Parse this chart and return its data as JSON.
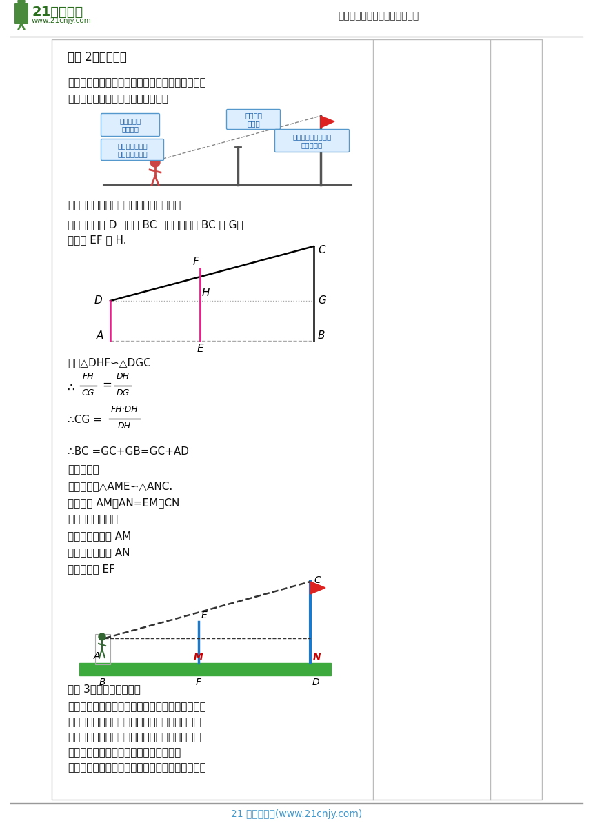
{
  "header_logo_text": "21世纪教育",
  "header_website": "www.21cnjy.com",
  "header_right": "中小学教育资源及组卷应用平台",
  "footer_text": "21 世纪教育网(www.21cnjy.com)",
  "method2_title": "方法 2：利用标杆",
  "desc1": "观测者适当调整自己的位置，使旗杆顶端、标杆顶",
  "desc2": "端、自己的眼睛恰好在一条直线上。",
  "label1": "观测者的身\n高可测量",
  "label2": "标杆的高\n可测量",
  "label3": "观测者到标杆底\n端的距离可测量",
  "label4": "观测者到旗杆底端的\n距离可测量",
  "question": "根据测量数据，你能求出旗杆的高度吗？",
  "construction1": "过眼睛所在点 D 作旗杆 BC 的垂线交旗杆 BC 于 G，",
  "construction2": "交标杆 EF 于 H.",
  "similarity": "可得△DHF∽△DGC",
  "therefore1": "∴",
  "frac1_n": "FH",
  "frac1_d": "CG",
  "eq": "=",
  "frac2_n": "DH",
  "frac2_d": "DG",
  "therefore2": "∴CG =",
  "frac3_n": "FH·DH",
  "frac3_d": "DH",
  "bc_eq": "∴BC =GC+GB=GC+AD",
  "summary": "归纳总结：",
  "s1": "构造相似：△AME∽△ANC.",
  "s2": "找比例： AM：AN=EM：CN",
  "s3": "需要测量的数据：",
  "s4": "人与标杆的距离 AM",
  "s5": "人与旗杆的距离 AN",
  "s6": "标杆的高度 EF",
  "method3_title": "方法 3：利用镜子的反射",
  "m3d1": "如图，每个小组选一名同学作为观测者，在观测者",
  "m3d2": "与旗杆之间的地面上平放一面镜子，在镜子上做一",
  "m3d3": "个标记，观测者看着镜子来回移动，直至看到旗杆",
  "m3d4": "顶端在镜子中的像与镜子上的标记重合。",
  "m3d5": "测量所需的数据，根据所测的结果，你能求出旗杆",
  "colors": {
    "blue_label_bg": "#ddeeff",
    "blue_label_fg": "#1a5fa8",
    "blue_label_border": "#5599cc",
    "pink": "#e91e8c",
    "dark": "#111111",
    "gray_dash": "#aaaaaa",
    "green_ground": "#3daa3d",
    "flag_red": "#dd2222",
    "blue_pole": "#1a7acd",
    "footer_blue": "#4499cc",
    "header_green": "#3a7a32",
    "border": "#bbbbbb"
  }
}
